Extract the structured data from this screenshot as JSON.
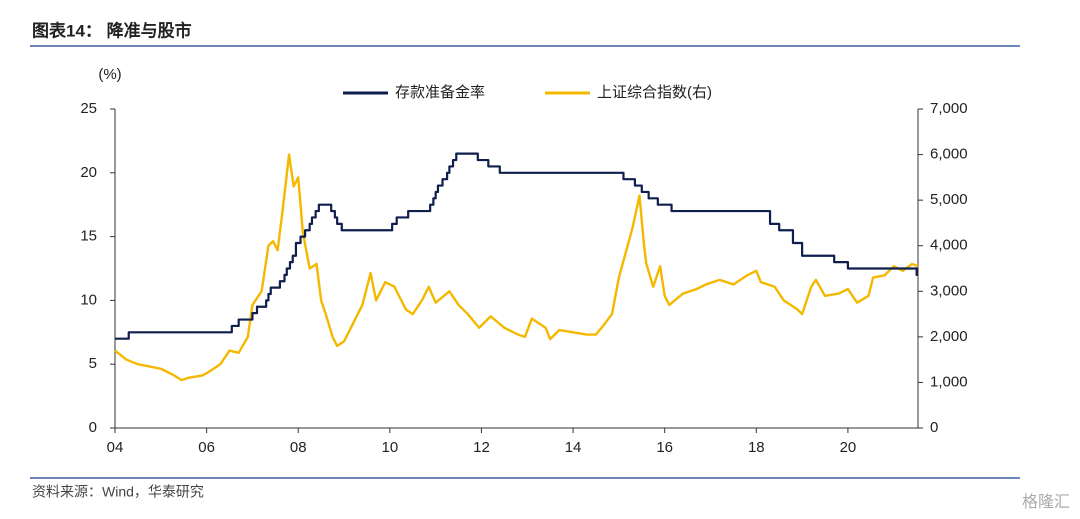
{
  "chart_data": {
    "type": "line",
    "title": "图表14： 降准与股市",
    "source": "资料来源：Wind，华泰研究",
    "watermark": "格隆汇",
    "ylabel": "(%)",
    "xlim": [
      2004,
      2021.53
    ],
    "xticks": [
      {
        "value": 2004,
        "label": "04"
      },
      {
        "value": 2006,
        "label": "06"
      },
      {
        "value": 2008,
        "label": "08"
      },
      {
        "value": 2010,
        "label": "10"
      },
      {
        "value": 2012,
        "label": "12"
      },
      {
        "value": 2014,
        "label": "14"
      },
      {
        "value": 2016,
        "label": "16"
      },
      {
        "value": 2018,
        "label": "18"
      },
      {
        "value": 2020,
        "label": "20"
      }
    ],
    "ylim": [
      0,
      25
    ],
    "yticks": [
      0,
      5,
      10,
      15,
      20,
      25
    ],
    "y2lim": [
      0,
      7000
    ],
    "y2ticks": [
      0,
      {
        "value": 1000,
        "label": "1,000"
      },
      {
        "value": 2000,
        "label": "2,000"
      },
      {
        "value": 3000,
        "label": "3,000"
      },
      {
        "value": 4000,
        "label": "4,000"
      },
      {
        "value": 5000,
        "label": "5,000"
      },
      {
        "value": 6000,
        "label": "6,000"
      },
      {
        "value": 7000,
        "label": "7,000"
      }
    ],
    "grid": false,
    "legend": "top",
    "series": [
      {
        "name": "存款准备金率",
        "color": "#0f1f4d",
        "axis": "y",
        "x": [
          2004.0,
          2004.3,
          2004.3,
          2006.55,
          2006.55,
          2006.7,
          2006.7,
          2007.0,
          2007.0,
          2007.1,
          2007.1,
          2007.3,
          2007.3,
          2007.35,
          2007.35,
          2007.4,
          2007.4,
          2007.6,
          2007.6,
          2007.7,
          2007.7,
          2007.75,
          2007.75,
          2007.82,
          2007.82,
          2007.88,
          2007.88,
          2007.95,
          2007.95,
          2008.05,
          2008.05,
          2008.15,
          2008.15,
          2008.25,
          2008.25,
          2008.3,
          2008.3,
          2008.38,
          2008.38,
          2008.45,
          2008.45,
          2008.72,
          2008.72,
          2008.8,
          2008.8,
          2008.85,
          2008.85,
          2008.95,
          2008.95,
          2010.05,
          2010.05,
          2010.15,
          2010.15,
          2010.4,
          2010.4,
          2010.88,
          2010.88,
          2010.95,
          2010.95,
          2011.0,
          2011.0,
          2011.05,
          2011.05,
          2011.15,
          2011.15,
          2011.25,
          2011.25,
          2011.3,
          2011.3,
          2011.38,
          2011.38,
          2011.45,
          2011.45,
          2011.92,
          2011.92,
          2012.15,
          2012.15,
          2012.4,
          2012.4,
          2015.1,
          2015.1,
          2015.35,
          2015.35,
          2015.5,
          2015.5,
          2015.65,
          2015.65,
          2015.85,
          2015.85,
          2016.15,
          2016.15,
          2018.3,
          2018.3,
          2018.5,
          2018.5,
          2018.8,
          2018.8,
          2019.0,
          2019.0,
          2019.7,
          2019.7,
          2020.0,
          2020.0,
          2021.5,
          2021.5,
          2021.53
        ],
        "values": [
          7,
          7,
          7.5,
          7.5,
          8,
          8,
          8.5,
          8.5,
          9,
          9,
          9.5,
          9.5,
          10,
          10,
          10.5,
          10.5,
          11,
          11,
          11.5,
          11.5,
          12,
          12,
          12.5,
          12.5,
          13,
          13,
          13.5,
          13.5,
          14.5,
          14.5,
          15,
          15,
          15.5,
          15.5,
          16,
          16,
          16.5,
          16.5,
          17,
          17,
          17.5,
          17.5,
          17,
          17,
          16.5,
          16.5,
          16,
          16,
          15.5,
          15.5,
          16,
          16,
          16.5,
          16.5,
          17,
          17,
          17.5,
          17.5,
          18,
          18,
          18.5,
          18.5,
          19,
          19,
          19.5,
          19.5,
          20,
          20,
          20.5,
          20.5,
          21,
          21,
          21.5,
          21.5,
          21,
          21,
          20.5,
          20.5,
          20,
          20,
          19.5,
          19.5,
          19,
          19,
          18.5,
          18.5,
          18,
          18,
          17.5,
          17.5,
          17,
          17,
          16,
          16,
          15.5,
          15.5,
          14.5,
          14.5,
          13.5,
          13.5,
          13,
          13,
          12.5,
          12.5,
          12,
          12
        ]
      },
      {
        "name": "上证综合指数(右)",
        "color": "#f5b800",
        "axis": "y2",
        "x": [
          2004.0,
          2004.25,
          2004.5,
          2004.75,
          2005.0,
          2005.3,
          2005.45,
          2005.6,
          2005.9,
          2006.0,
          2006.3,
          2006.5,
          2006.7,
          2006.9,
          2007.0,
          2007.2,
          2007.35,
          2007.45,
          2007.55,
          2007.65,
          2007.8,
          2007.9,
          2008.0,
          2008.1,
          2008.25,
          2008.4,
          2008.5,
          2008.6,
          2008.75,
          2008.85,
          2009.0,
          2009.2,
          2009.4,
          2009.58,
          2009.7,
          2009.9,
          2010.1,
          2010.35,
          2010.5,
          2010.7,
          2010.85,
          2011.0,
          2011.3,
          2011.5,
          2011.7,
          2011.95,
          2012.2,
          2012.5,
          2012.8,
          2012.95,
          2013.1,
          2013.4,
          2013.5,
          2013.7,
          2014.0,
          2014.3,
          2014.5,
          2014.7,
          2014.85,
          2015.0,
          2015.3,
          2015.45,
          2015.55,
          2015.6,
          2015.75,
          2015.9,
          2016.0,
          2016.1,
          2016.4,
          2016.7,
          2016.9,
          2017.2,
          2017.5,
          2017.8,
          2018.0,
          2018.1,
          2018.4,
          2018.6,
          2018.9,
          2019.0,
          2019.2,
          2019.3,
          2019.5,
          2019.8,
          2020.0,
          2020.2,
          2020.45,
          2020.55,
          2020.8,
          2021.0,
          2021.2,
          2021.4,
          2021.53
        ],
        "values": [
          1700,
          1500,
          1400,
          1350,
          1300,
          1150,
          1050,
          1100,
          1150,
          1200,
          1400,
          1700,
          1650,
          2000,
          2700,
          3000,
          4000,
          4100,
          3900,
          4700,
          6000,
          5300,
          5500,
          4300,
          3500,
          3600,
          2800,
          2500,
          2000,
          1800,
          1900,
          2300,
          2700,
          3400,
          2800,
          3200,
          3100,
          2600,
          2500,
          2800,
          3100,
          2750,
          3000,
          2700,
          2500,
          2200,
          2450,
          2200,
          2050,
          2000,
          2400,
          2200,
          1950,
          2150,
          2100,
          2050,
          2050,
          2300,
          2500,
          3300,
          4400,
          5100,
          4000,
          3600,
          3100,
          3550,
          2900,
          2700,
          2950,
          3050,
          3150,
          3250,
          3150,
          3350,
          3450,
          3200,
          3100,
          2800,
          2600,
          2500,
          3100,
          3250,
          2900,
          2950,
          3050,
          2750,
          2900,
          3300,
          3350,
          3550,
          3450,
          3600,
          3550
        ]
      }
    ]
  }
}
